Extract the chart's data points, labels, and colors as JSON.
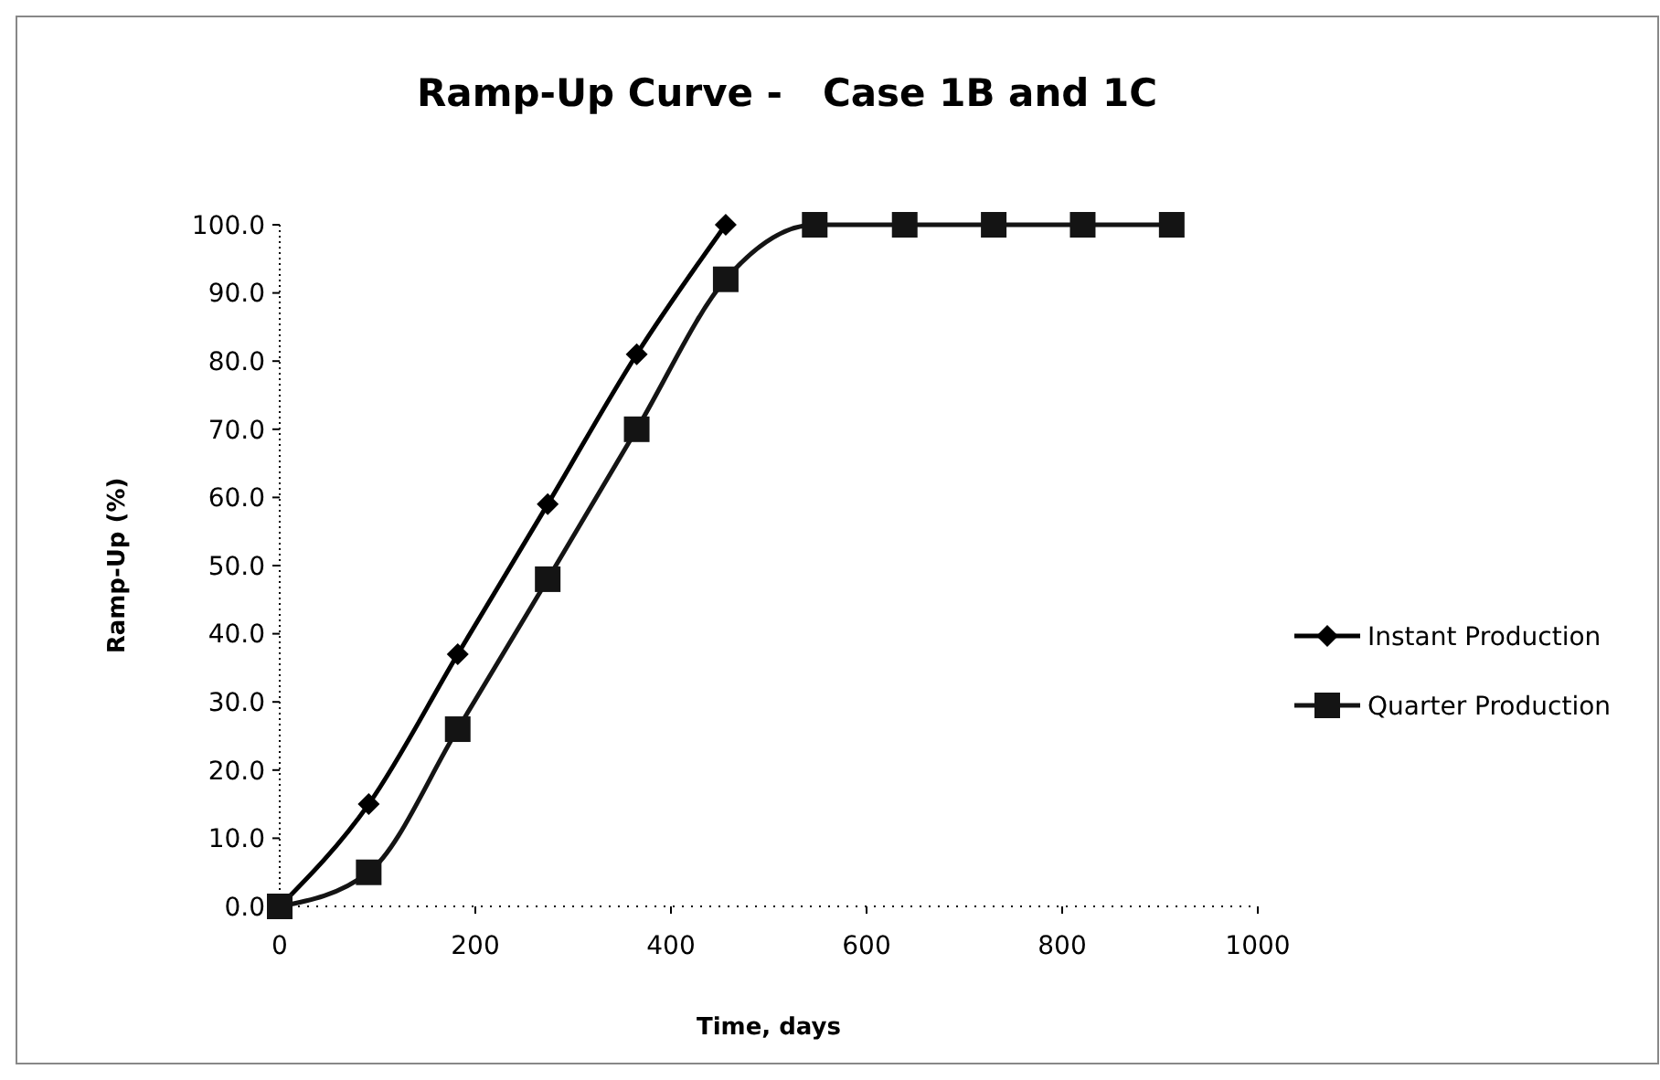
{
  "chart_data": {
    "type": "line",
    "title": "Ramp-Up Curve -   Case 1B and 1C",
    "xlabel": "Time, days",
    "ylabel": "Ramp-Up (%)",
    "x": [
      0,
      91,
      182,
      274,
      365,
      456,
      547,
      639,
      730,
      821,
      912
    ],
    "series": [
      {
        "name": "Instant Production",
        "color": "#000000",
        "marker": "diamond",
        "values": [
          0,
          15,
          37,
          59,
          81,
          100,
          null,
          null,
          null,
          null,
          null
        ]
      },
      {
        "name": "Quarter Production",
        "color": "#141414",
        "marker": "square",
        "values": [
          0,
          5,
          26,
          48,
          70,
          92,
          100,
          100,
          100,
          100,
          100
        ]
      }
    ],
    "xlim": [
      0,
      1000
    ],
    "xticks": [
      0,
      200,
      400,
      600,
      800,
      1000
    ],
    "ylim": [
      0,
      100
    ],
    "yticks": [
      {
        "value": 0,
        "label": "0.0"
      },
      {
        "value": 10,
        "label": "10.0"
      },
      {
        "value": 20,
        "label": "20.0"
      },
      {
        "value": 30,
        "label": "30.0"
      },
      {
        "value": 40,
        "label": "40.0"
      },
      {
        "value": 50,
        "label": "50.0"
      },
      {
        "value": 60,
        "label": "60.0"
      },
      {
        "value": 70,
        "label": "70.0"
      },
      {
        "value": 80,
        "label": "80.0"
      },
      {
        "value": 90,
        "label": "90.0"
      },
      {
        "value": 100,
        "label": "100.0"
      }
    ],
    "grid": false,
    "legend": "right",
    "line_style": "solid"
  }
}
